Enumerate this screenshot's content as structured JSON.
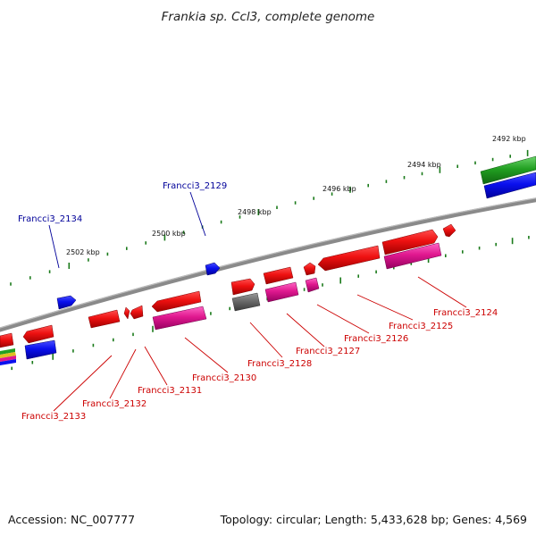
{
  "title": "Frankia sp. Ccl3, complete genome",
  "footer": {
    "accession": "Accession: NC_007777",
    "summary": "Topology: circular; Length: 5,433,628 bp; Genes: 4,569"
  },
  "colors": {
    "backbone": "#808080",
    "tick": "#1a7a1a",
    "cds": "#ee1111",
    "cds_magenta": "#e0188f",
    "cds_blue": "#0a10ee",
    "cds_green": "#22a022",
    "cds_grey": "#6a6a6a",
    "label_red": "#cc0000",
    "label_blue": "#000099"
  },
  "kbp_labels": [
    "2492 kbp",
    "2494 kbp",
    "2496 kbp",
    "2498 kbp",
    "2500 kbp",
    "2502 kbp"
  ],
  "gene_labels": {
    "Francci3_2124": "Francci3_2124",
    "Francci3_2125": "Francci3_2125",
    "Francci3_2126": "Francci3_2126",
    "Francci3_2127": "Francci3_2127",
    "Francci3_2128": "Francci3_2128",
    "Francci3_2129": "Francci3_2129",
    "Francci3_2130": "Francci3_2130",
    "Francci3_2131": "Francci3_2131",
    "Francci3_2132": "Francci3_2132",
    "Francci3_2133": "Francci3_2133",
    "Francci3_2134": "Francci3_2134"
  }
}
